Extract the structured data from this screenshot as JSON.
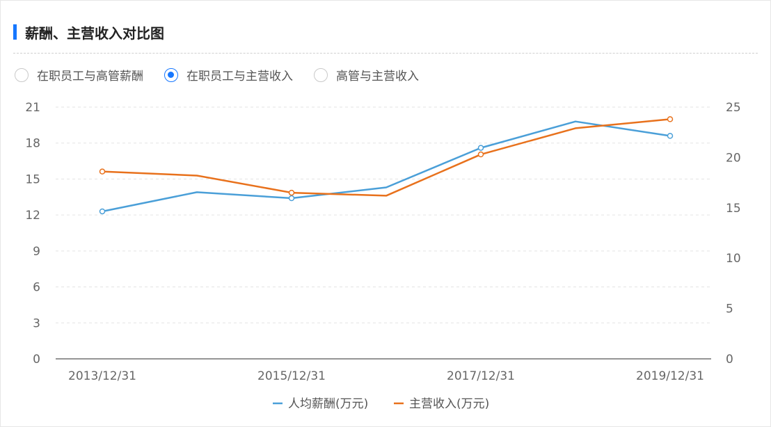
{
  "title": "薪酬、主营收入对比图",
  "accent_color": "#1677ff",
  "radio_options": [
    {
      "label": "在职员工与高管薪酬",
      "selected": false
    },
    {
      "label": "在职员工与主营收入",
      "selected": true
    },
    {
      "label": "高管与主营收入",
      "selected": false
    }
  ],
  "chart_data": {
    "type": "line",
    "x": [
      "2013/12/31",
      "2014/12/31",
      "2015/12/31",
      "2016/12/31",
      "2017/12/31",
      "2018/12/31",
      "2019/12/31"
    ],
    "x_tick_labels": [
      "2013/12/31",
      "2015/12/31",
      "2017/12/31",
      "2019/12/31"
    ],
    "y_left_ticks": [
      0,
      3,
      6,
      9,
      12,
      15,
      18,
      21
    ],
    "y_right_ticks": [
      0,
      5,
      10,
      15,
      20,
      25
    ],
    "ylim_left": [
      0,
      21
    ],
    "ylim_right": [
      0,
      25
    ],
    "grid": true,
    "legend_position": "bottom",
    "series": [
      {
        "name": "人均薪酬(万元)",
        "axis": "left",
        "color": "#4a9fd8",
        "values": [
          12.3,
          13.9,
          13.4,
          14.3,
          17.6,
          19.8,
          18.6
        ],
        "markers": [
          true,
          false,
          true,
          false,
          true,
          false,
          true
        ]
      },
      {
        "name": "主营收入(万元)",
        "axis": "right",
        "color": "#e8711c",
        "values": [
          18.6,
          18.2,
          16.5,
          16.2,
          20.3,
          22.9,
          23.8
        ],
        "markers": [
          true,
          false,
          true,
          false,
          true,
          false,
          true
        ]
      }
    ]
  }
}
